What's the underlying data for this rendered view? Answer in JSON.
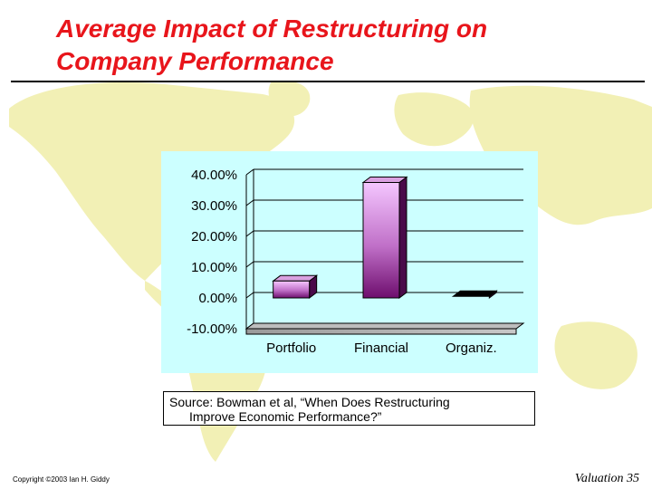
{
  "slide": {
    "title": "Average Impact of Restructuring on\nCompany Performance",
    "source_line1": "Source: Bowman et al, “When Does Restructuring",
    "source_line2": "Improve Economic Performance?”",
    "copyright": "Copyright ©2003 Ian H. Giddy",
    "footer_label": "Valuation",
    "page_number": "35"
  },
  "colors": {
    "title": "#e8151b",
    "chart_background": "#ccffff",
    "map": "#f2f0b5",
    "bar_light": "#f4c6ff",
    "bar_dark": "#6e0e6e"
  },
  "chart_data": {
    "type": "bar",
    "style": "3d",
    "categories": [
      "Portfolio",
      "Financial",
      "Organiz."
    ],
    "values": [
      5.5,
      37.5,
      0.5
    ],
    "ylim": [
      -10,
      40
    ],
    "yticks": [
      -10,
      0,
      10,
      20,
      30,
      40
    ],
    "ytick_labels": [
      "-10.00%",
      "0.00%",
      "10.00%",
      "20.00%",
      "30.00%",
      "40.00%"
    ],
    "grid": true,
    "title": "",
    "xlabel": "",
    "ylabel": ""
  }
}
